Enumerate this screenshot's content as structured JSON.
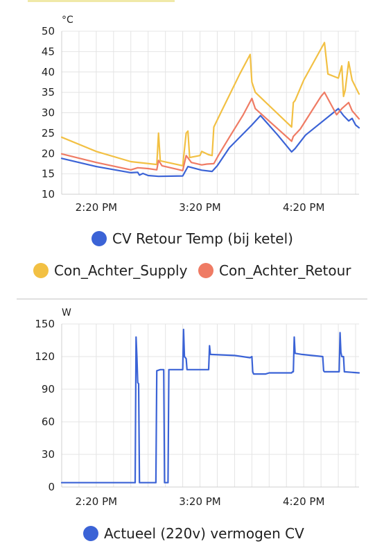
{
  "colors": {
    "blue": "#3b63d6",
    "yellow": "#f2c043",
    "red": "#ef7b64",
    "grid": "#e4e4e4"
  },
  "chart_data": [
    {
      "type": "line",
      "unit": "°C",
      "ylim": [
        10,
        50
      ],
      "yticks": [
        "10",
        "15",
        "20",
        "25",
        "30",
        "35",
        "40",
        "45",
        "50"
      ],
      "xlim": [
        0,
        172
      ],
      "xticks": [
        {
          "label": "2:20 PM",
          "x": 20
        },
        {
          "label": "3:20 PM",
          "x": 80
        },
        {
          "label": "4:20 PM",
          "x": 140
        }
      ],
      "grid": true,
      "legend_position": "bottom",
      "series": [
        {
          "name": "CV Retour Temp (bij ketel)",
          "color": "#3b63d6",
          "points": [
            [
              0,
              18.8
            ],
            [
              20,
              16.8
            ],
            [
              40,
              15.3
            ],
            [
              44,
              15.4
            ],
            [
              45,
              14.7
            ],
            [
              47,
              15.1
            ],
            [
              50,
              14.6
            ],
            [
              56,
              14.4
            ],
            [
              70,
              14.5
            ],
            [
              73,
              16.8
            ],
            [
              81,
              15.9
            ],
            [
              87,
              15.6
            ],
            [
              90,
              17.0
            ],
            [
              97,
              21.4
            ],
            [
              110,
              27.0
            ],
            [
              115,
              29.3
            ],
            [
              125,
              24.5
            ],
            [
              133,
              20.4
            ],
            [
              135,
              21.2
            ],
            [
              141,
              24.5
            ],
            [
              160,
              31.0
            ],
            [
              163,
              29.3
            ],
            [
              166,
              28.0
            ],
            [
              168,
              28.6
            ],
            [
              170,
              27.0
            ],
            [
              172,
              26.3
            ]
          ]
        },
        {
          "name": "Con_Achter_Supply",
          "color": "#f2c043",
          "points": [
            [
              0,
              24.0
            ],
            [
              20,
              20.5
            ],
            [
              40,
              18.0
            ],
            [
              55,
              17.3
            ],
            [
              56,
              25.0
            ],
            [
              57,
              18.2
            ],
            [
              70,
              17.0
            ],
            [
              72,
              25.0
            ],
            [
              73,
              25.5
            ],
            [
              74,
              19.0
            ],
            [
              80,
              19.5
            ],
            [
              81,
              20.5
            ],
            [
              85,
              19.7
            ],
            [
              87,
              19.5
            ],
            [
              88,
              26.5
            ],
            [
              92,
              30.0
            ],
            [
              103,
              39.5
            ],
            [
              109,
              44.3
            ],
            [
              110,
              37.5
            ],
            [
              112,
              35.0
            ],
            [
              133,
              26.5
            ],
            [
              134,
              32.5
            ],
            [
              135,
              33.0
            ],
            [
              140,
              38.0
            ],
            [
              152,
              47.2
            ],
            [
              154,
              39.5
            ],
            [
              160,
              38.5
            ],
            [
              162,
              41.5
            ],
            [
              163,
              34.0
            ],
            [
              164,
              35.5
            ],
            [
              166,
              42.5
            ],
            [
              168,
              38.0
            ],
            [
              172,
              34.6
            ]
          ]
        },
        {
          "name": "Con_Achter_Retour",
          "color": "#ef7b64",
          "points": [
            [
              0,
              19.9
            ],
            [
              20,
              17.8
            ],
            [
              40,
              16.0
            ],
            [
              44,
              16.5
            ],
            [
              50,
              16.3
            ],
            [
              55,
              16.0
            ],
            [
              56,
              18.3
            ],
            [
              58,
              17.0
            ],
            [
              70,
              15.8
            ],
            [
              72,
              19.5
            ],
            [
              75,
              17.8
            ],
            [
              81,
              17.2
            ],
            [
              84,
              17.4
            ],
            [
              88,
              17.5
            ],
            [
              91,
              19.8
            ],
            [
              97,
              24.0
            ],
            [
              105,
              29.5
            ],
            [
              110,
              33.5
            ],
            [
              112,
              31.0
            ],
            [
              133,
              23.0
            ],
            [
              134,
              24.2
            ],
            [
              138,
              26.0
            ],
            [
              150,
              34.0
            ],
            [
              152,
              35.0
            ],
            [
              159,
              29.5
            ],
            [
              162,
              31.0
            ],
            [
              166,
              32.5
            ],
            [
              168,
              30.5
            ],
            [
              172,
              28.5
            ]
          ]
        }
      ]
    },
    {
      "type": "line",
      "unit": "W",
      "ylim": [
        0,
        150
      ],
      "yticks": [
        "0",
        "30",
        "60",
        "90",
        "120",
        "150"
      ],
      "xlim": [
        0,
        172
      ],
      "xticks": [
        {
          "label": "2:20 PM",
          "x": 20
        },
        {
          "label": "3:20 PM",
          "x": 80
        },
        {
          "label": "4:20 PM",
          "x": 140
        }
      ],
      "grid": true,
      "legend_position": "bottom",
      "series": [
        {
          "name": "Actueel (220v) vermogen CV",
          "color": "#3b63d6",
          "points": [
            [
              0,
              4
            ],
            [
              42,
              4
            ],
            [
              42.5,
              4
            ],
            [
              43,
              138
            ],
            [
              43.5,
              120
            ],
            [
              44,
              96
            ],
            [
              44.5,
              95
            ],
            [
              45,
              4
            ],
            [
              54,
              4
            ],
            [
              54.5,
              4
            ],
            [
              55,
              107
            ],
            [
              57,
              108
            ],
            [
              59,
              108
            ],
            [
              59.5,
              4
            ],
            [
              61,
              4
            ],
            [
              61.5,
              4
            ],
            [
              62,
              108
            ],
            [
              69,
              108
            ],
            [
              70,
              108
            ],
            [
              70.5,
              145
            ],
            [
              71,
              120
            ],
            [
              72,
              118
            ],
            [
              72.5,
              108
            ],
            [
              84,
              108
            ],
            [
              85,
              108
            ],
            [
              85.5,
              130
            ],
            [
              86,
              122
            ],
            [
              100,
              121
            ],
            [
              109,
              119
            ],
            [
              110,
              120
            ],
            [
              110.5,
              106
            ],
            [
              111,
              104
            ],
            [
              118,
              104
            ],
            [
              120,
              105
            ],
            [
              133,
              105
            ],
            [
              133.5,
              106
            ],
            [
              134,
              106
            ],
            [
              134.5,
              138
            ],
            [
              135,
              123
            ],
            [
              139,
              122
            ],
            [
              151,
              120
            ],
            [
              151.5,
              107
            ],
            [
              152,
              106
            ],
            [
              160,
              106
            ],
            [
              160.5,
              106
            ],
            [
              161,
              142
            ],
            [
              161.5,
              124
            ],
            [
              162,
              120
            ],
            [
              163,
              120
            ],
            [
              163.5,
              106
            ],
            [
              172,
              105
            ]
          ]
        }
      ]
    }
  ]
}
